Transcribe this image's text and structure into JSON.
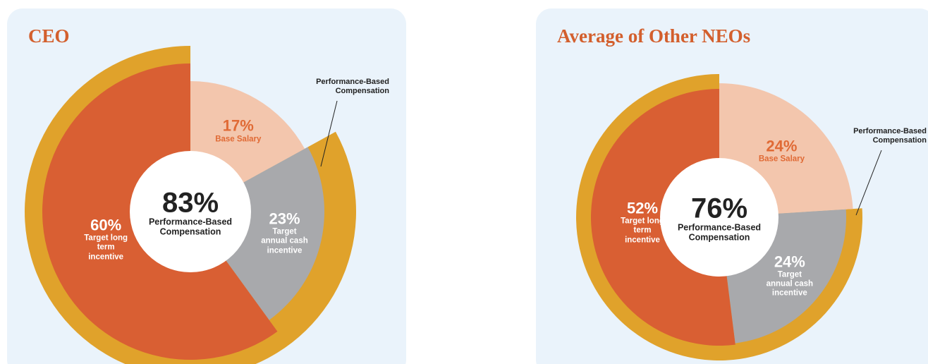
{
  "chart_data": [
    {
      "type": "pie",
      "title": "CEO",
      "categories": [
        "Base Salary",
        "Target annual cash incentive",
        "Target long term incentive"
      ],
      "values": [
        17,
        23,
        60
      ],
      "value_labels": [
        "17%",
        "23%",
        "60%"
      ],
      "colors": [
        "#f3c6ad",
        "#a8a9ac",
        "#d95f33"
      ],
      "total": {
        "value": 83,
        "label": "83%",
        "caption": "Performance-Based Compensation",
        "color": "#e0a22b"
      },
      "annotation": "Performance-Based Compensation"
    },
    {
      "type": "pie",
      "title": "Average of Other NEOs",
      "categories": [
        "Base Salary",
        "Target annual cash incentive",
        "Target long term incentive"
      ],
      "values": [
        24,
        24,
        52
      ],
      "value_labels": [
        "24%",
        "24%",
        "52%"
      ],
      "colors": [
        "#f3c6ad",
        "#a8a9ac",
        "#d95f33"
      ],
      "total": {
        "value": 76,
        "label": "76%",
        "caption": "Performance-Based Compensation",
        "color": "#e0a22b"
      },
      "annotation": "Performance-Based Compensation"
    }
  ]
}
